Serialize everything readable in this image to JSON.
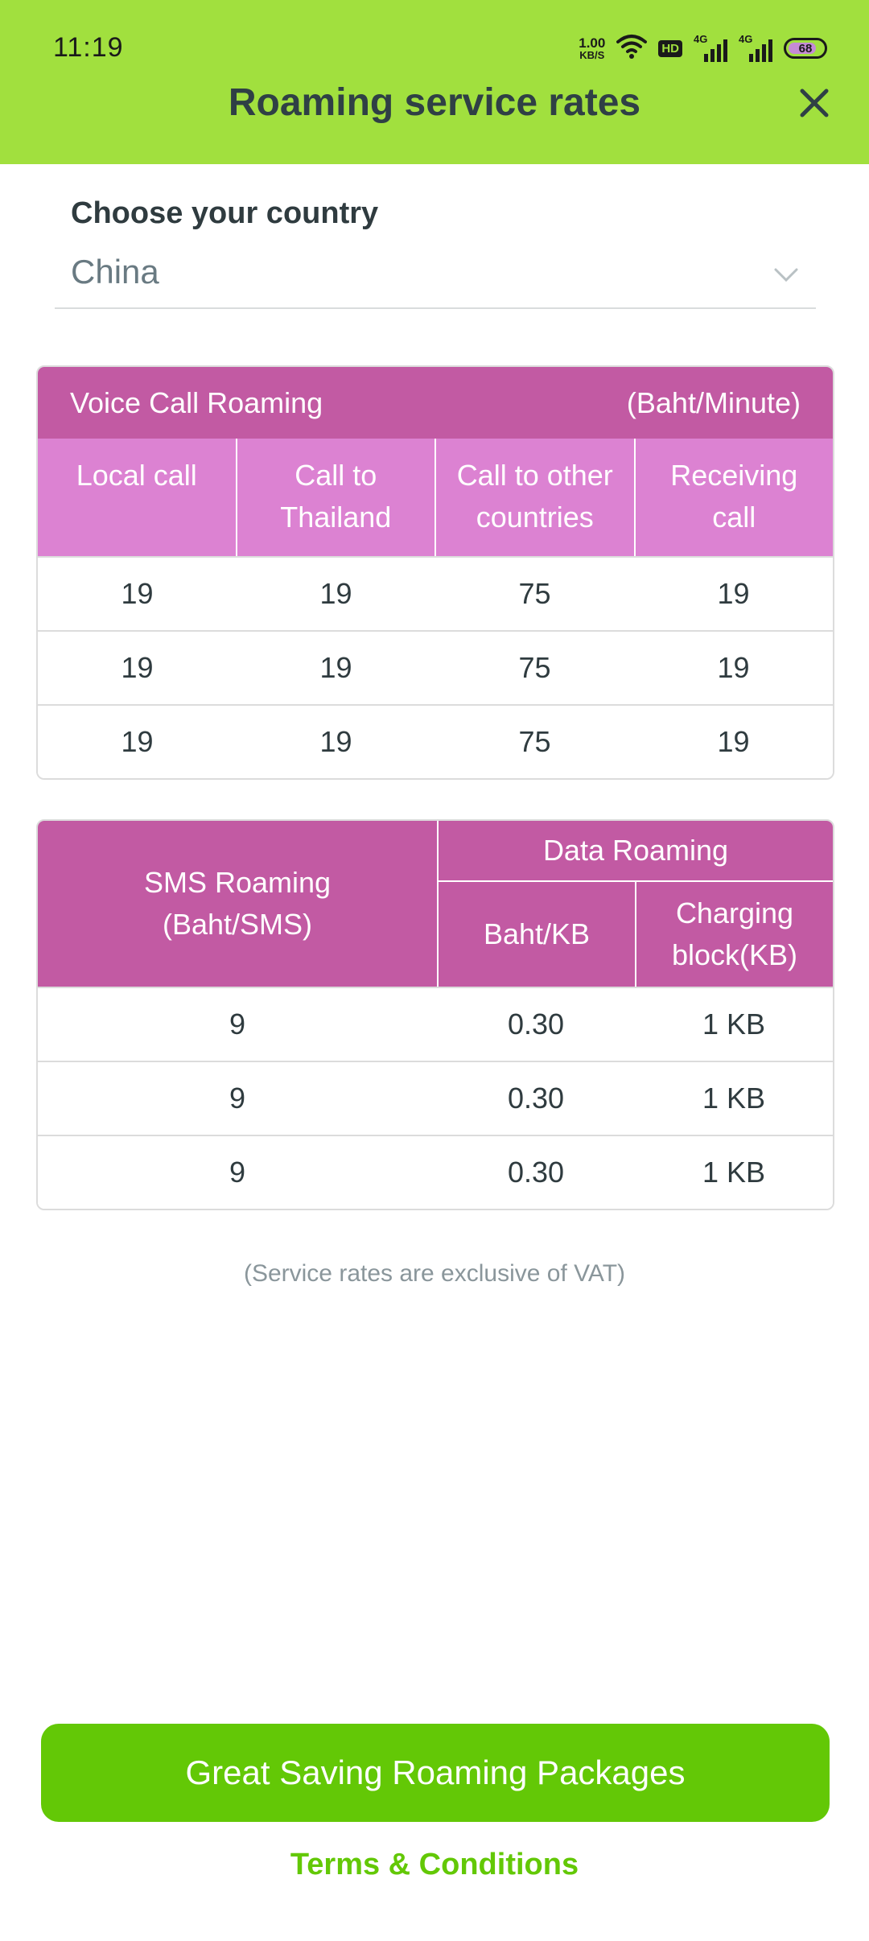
{
  "status_bar": {
    "time": "11:19",
    "net_speed_value": "1.00",
    "net_speed_unit": "KB/S",
    "hd_label": "HD",
    "sim1_label": "4G",
    "sim2_label": "4G",
    "battery_level": "68"
  },
  "header": {
    "title": "Roaming service rates",
    "close_icon": "close-icon",
    "background_color": "#a1e03e"
  },
  "country": {
    "label": "Choose your country",
    "selected": "China"
  },
  "voice_table": {
    "title": "Voice Call Roaming",
    "unit": "(Baht/Minute)",
    "columns": [
      {
        "line1": "Local call",
        "line2": ""
      },
      {
        "line1": "Call to",
        "line2": "Thailand"
      },
      {
        "line1": "Call to other",
        "line2": "countries"
      },
      {
        "line1": "Receiving",
        "line2": "call"
      }
    ],
    "rows": [
      [
        "19",
        "19",
        "75",
        "19"
      ],
      [
        "19",
        "19",
        "75",
        "19"
      ],
      [
        "19",
        "19",
        "75",
        "19"
      ]
    ]
  },
  "data_table": {
    "sms_header_line1": "SMS Roaming",
    "sms_header_line2": "(Baht/SMS)",
    "data_header": "Data Roaming",
    "data_col1": "Baht/KB",
    "data_col2_line1": "Charging",
    "data_col2_line2": "block(KB)",
    "rows": [
      [
        "9",
        "0.30",
        "1 KB"
      ],
      [
        "9",
        "0.30",
        "1 KB"
      ],
      [
        "9",
        "0.30",
        "1 KB"
      ]
    ]
  },
  "vat_note": "(Service rates are exclusive of VAT)",
  "actions": {
    "packages_button": "Great Saving Roaming Packages",
    "terms_link": "Terms & Conditions"
  },
  "colors": {
    "accent_green": "#63c806",
    "table_header": "#c25aa3",
    "table_subheader": "#dc82d2"
  }
}
